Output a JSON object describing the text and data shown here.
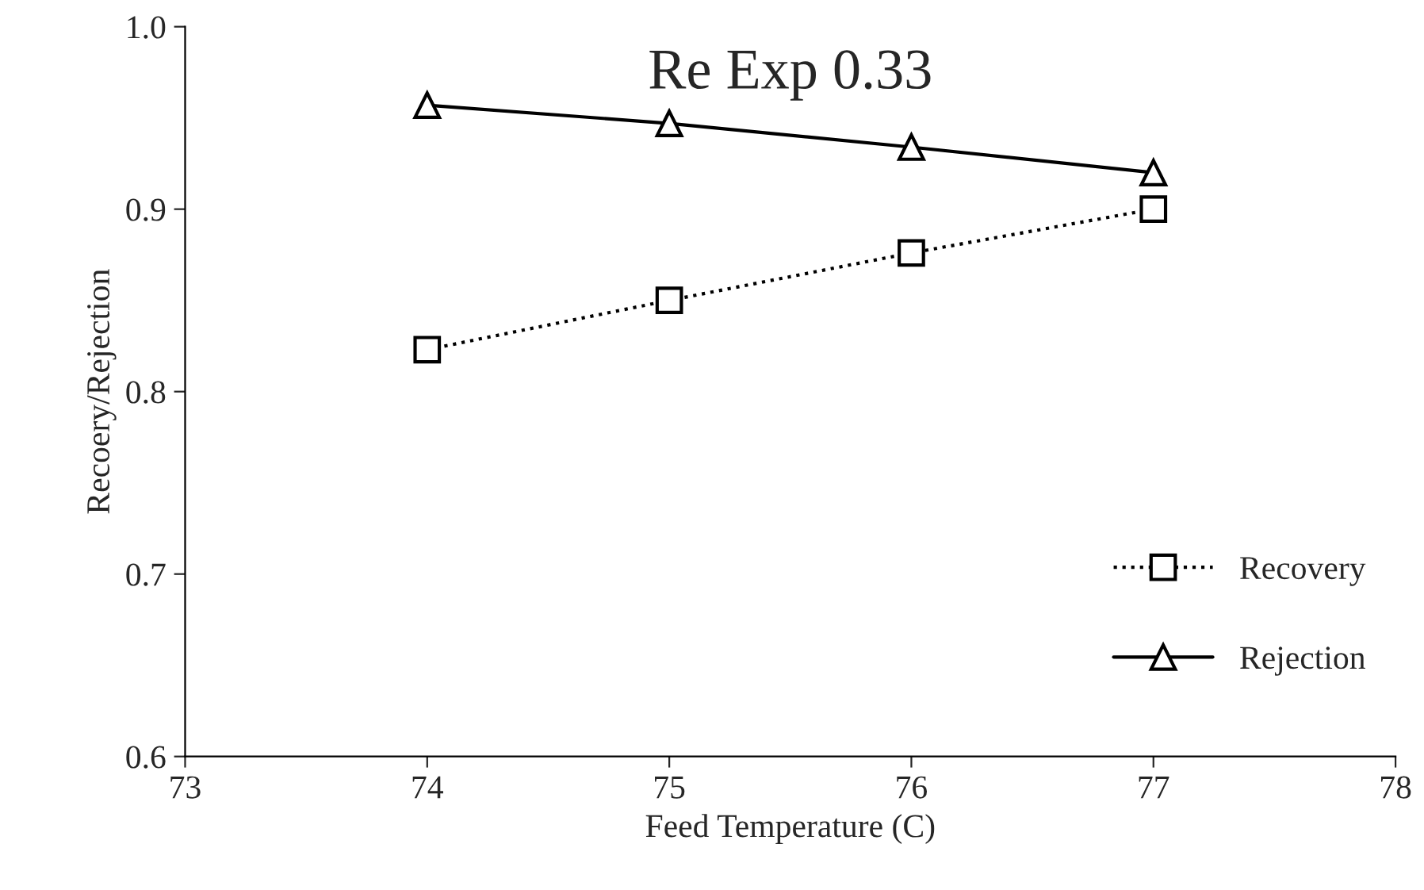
{
  "chart_data": {
    "type": "line",
    "title": "Re Exp 0.33",
    "xlabel": "Feed Temperature (C)",
    "ylabel": "Recoery/Rejection",
    "x": [
      74,
      75,
      76,
      77
    ],
    "series": [
      {
        "name": "Recovery",
        "color": "#000000",
        "values": [
          0.823,
          0.85,
          0.876,
          0.9
        ],
        "marker": "square",
        "line_style": "dotted"
      },
      {
        "name": "Rejection",
        "color": "#000000",
        "values": [
          0.957,
          0.947,
          0.934,
          0.92
        ],
        "marker": "triangle",
        "line_style": "solid"
      }
    ],
    "xlim": [
      73,
      78
    ],
    "xticks": [
      73,
      74,
      75,
      76,
      77,
      78
    ],
    "ylim": [
      0.6,
      1.0
    ],
    "yticks": [
      {
        "value": 0.6,
        "label": "0.6"
      },
      {
        "value": 0.7,
        "label": "0.7"
      },
      {
        "value": 0.8,
        "label": "0.8"
      },
      {
        "value": 0.9,
        "label": "0.9"
      },
      {
        "value": 1.0,
        "label": "1.0"
      }
    ],
    "grid": false,
    "legend": "bottom right"
  }
}
